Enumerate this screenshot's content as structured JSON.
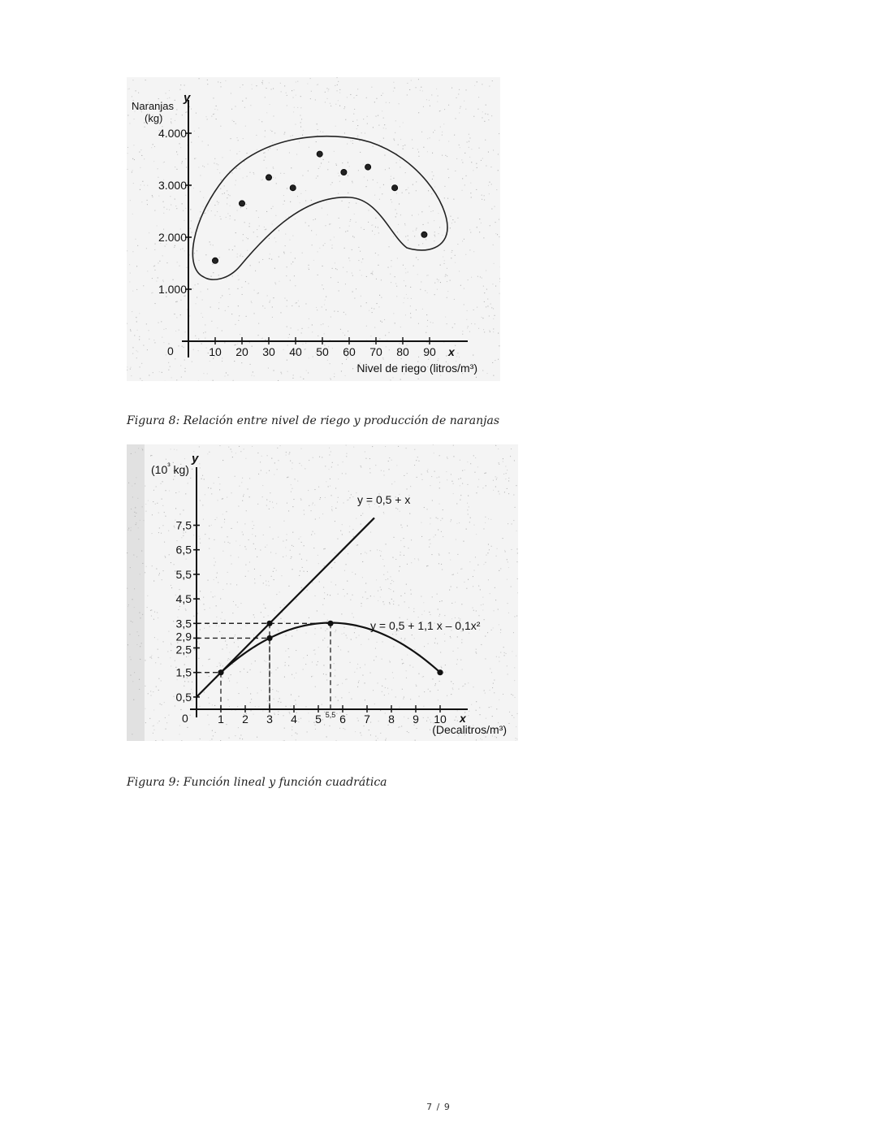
{
  "figures": [
    {
      "caption": "Figura 8: Relación entre nivel de riego y producción de naranjas",
      "chart_data": {
        "type": "scatter",
        "title": "",
        "xlabel": "Nivel de riego (litros/m³)",
        "ylabel": "Naranjas (kg)",
        "x_axis_symbol": "x",
        "y_axis_symbol": "y",
        "xlim": [
          0,
          100
        ],
        "ylim": [
          0,
          4000
        ],
        "x_ticks": [
          10,
          20,
          30,
          40,
          50,
          60,
          70,
          80,
          90
        ],
        "x_tick_labels": [
          "10",
          "20",
          "30",
          "40",
          "50",
          "60",
          "70",
          "80",
          "90"
        ],
        "y_ticks": [
          1000,
          2000,
          3000,
          4000
        ],
        "y_tick_labels": [
          "1.000",
          "2.000",
          "3.000",
          "4.000"
        ],
        "origin_label": "0",
        "grid": false,
        "points": [
          {
            "x": 10,
            "y": 1550
          },
          {
            "x": 20,
            "y": 2650
          },
          {
            "x": 30,
            "y": 3150
          },
          {
            "x": 39,
            "y": 2950
          },
          {
            "x": 49,
            "y": 3600
          },
          {
            "x": 58,
            "y": 3250
          },
          {
            "x": 67,
            "y": 3350
          },
          {
            "x": 77,
            "y": 2950
          },
          {
            "x": 88,
            "y": 2050
          }
        ],
        "enclosing_region": true
      }
    },
    {
      "caption": "Figura 9: Función lineal y función cuadrática",
      "chart_data": {
        "type": "line",
        "title": "",
        "xlabel": "(Decalitros/m³)",
        "ylabel": "(10³ kg)",
        "x_axis_symbol": "x",
        "y_axis_symbol": "y",
        "xlim": [
          0,
          11
        ],
        "ylim": [
          0,
          9.5
        ],
        "x_ticks": [
          1,
          2,
          3,
          4,
          5,
          6,
          7,
          8,
          9,
          10
        ],
        "x_tick_labels": [
          "1",
          "2",
          "3",
          "4",
          "5",
          "6",
          "7",
          "8",
          "9",
          "10"
        ],
        "x_extra_label": {
          "x": 5.5,
          "text": "5,5"
        },
        "y_ticks": [
          0.5,
          1.5,
          2.5,
          2.9,
          3.5,
          4.5,
          5.5,
          6.5,
          7.5
        ],
        "y_tick_labels": [
          "0,5",
          "1,5",
          "2,5",
          "2,9",
          "3,5",
          "4,5",
          "5,5",
          "6,5",
          "7,5"
        ],
        "origin_label": "0",
        "grid": false,
        "series": [
          {
            "name": "y = 0,5 + x",
            "kind": "linear",
            "x_range": [
              0,
              7.3
            ]
          },
          {
            "name": "y = 0,5 + 1,1 x – 0,1x²",
            "kind": "quadratic",
            "x_range": [
              1,
              10
            ]
          }
        ],
        "marked_points": [
          {
            "x": 1,
            "y": 1.5
          },
          {
            "x": 3,
            "y": 3.5
          },
          {
            "x": 3,
            "y": 2.9
          },
          {
            "x": 5.5,
            "y": 3.5
          },
          {
            "x": 10,
            "y": 1.5
          }
        ],
        "guide_lines": [
          {
            "x": 1,
            "y": 1.5
          },
          {
            "x": 3,
            "y": 2.9
          },
          {
            "x": 3,
            "y": 3.5
          },
          {
            "x": 5.5,
            "y": 3.5
          }
        ]
      }
    }
  ],
  "page_number": "7 / 9"
}
